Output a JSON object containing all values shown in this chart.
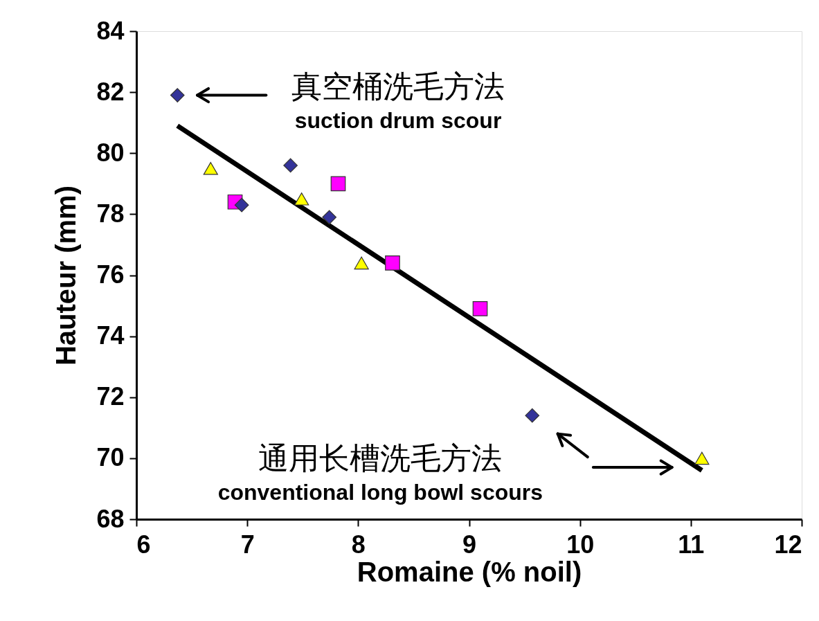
{
  "chart_data": {
    "type": "scatter",
    "xlabel": "Romaine (% noil)",
    "ylabel": "Hauteur (mm)",
    "xlim": [
      6,
      12
    ],
    "xticks": [
      6,
      7,
      8,
      9,
      10,
      11,
      12
    ],
    "ylim": [
      68,
      84
    ],
    "yticks": [
      68,
      70,
      72,
      74,
      76,
      78,
      80,
      82,
      84
    ],
    "grid": false,
    "series": [
      {
        "color": "#333399",
        "marker": "diamond",
        "x": [
          6.37,
          7.39,
          6.95,
          7.74,
          9.57
        ],
        "values": [
          81.9,
          79.6,
          78.3,
          77.9,
          71.4
        ]
      },
      {
        "color": "#ffff00",
        "marker": "triangle",
        "x": [
          6.67,
          7.49,
          8.03,
          11.1
        ],
        "values": [
          79.5,
          78.5,
          76.4,
          70.0
        ]
      },
      {
        "color": "#ff00ff",
        "marker": "square",
        "x": [
          6.89,
          7.82,
          8.31,
          9.1
        ],
        "values": [
          78.4,
          79.0,
          76.4,
          74.9
        ]
      },
      {
        "type": "line",
        "color": "#000000",
        "x": [
          6.37,
          11.1
        ],
        "values": [
          80.9,
          69.6
        ]
      }
    ],
    "annotations": [
      "真空桶洗毛方法",
      "suction drum scour",
      "通用长槽洗毛方法",
      "conventional long bowl  scours"
    ]
  }
}
